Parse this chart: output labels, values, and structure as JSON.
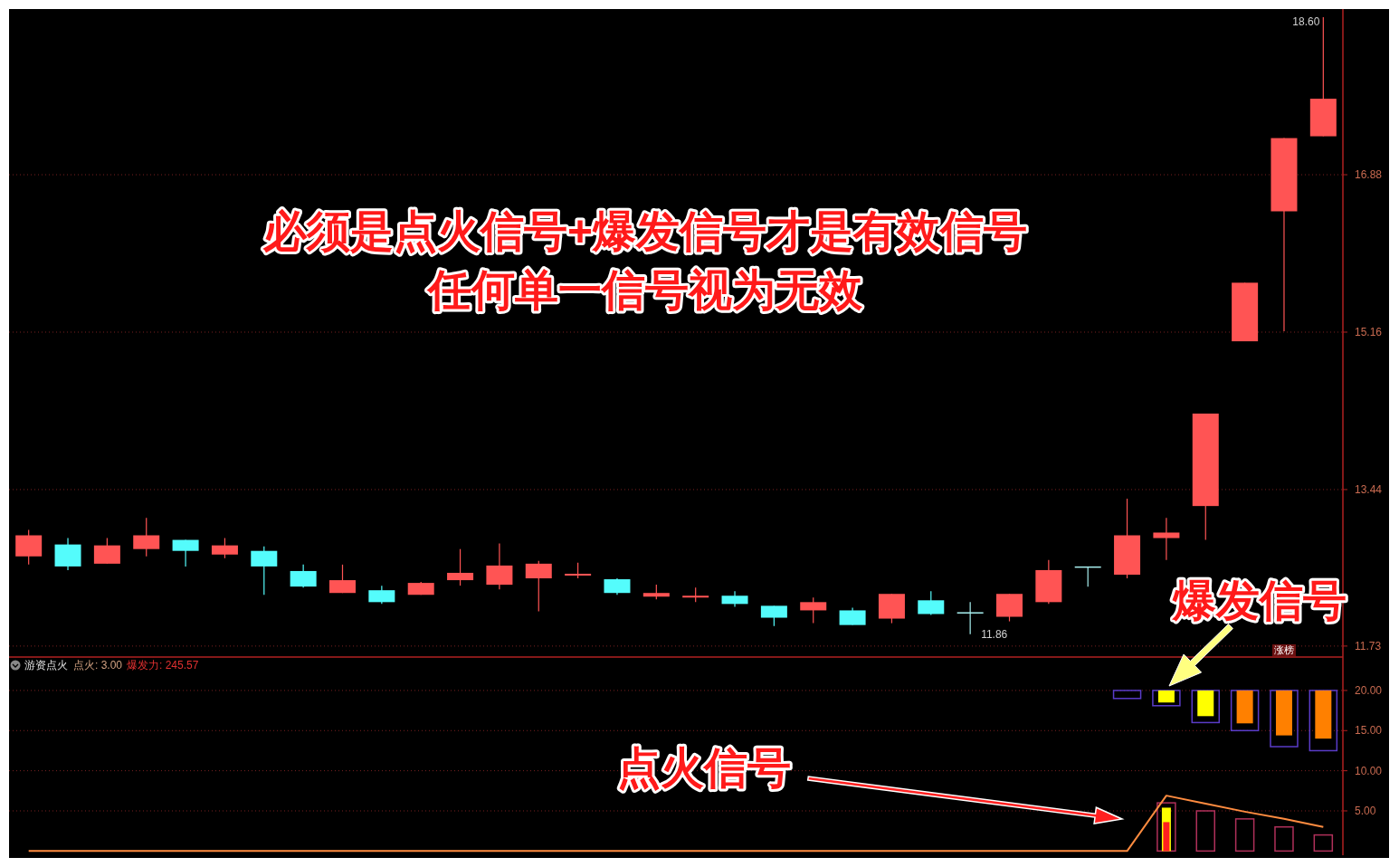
{
  "chart_data": [
    {
      "type": "candlestick",
      "categories": [
        null,
        null,
        null,
        null,
        null,
        null,
        null,
        null,
        null,
        null,
        null,
        null,
        null,
        null,
        null,
        null,
        null,
        null,
        null,
        null,
        null,
        null,
        null,
        null,
        null,
        null,
        null,
        null,
        null,
        null,
        null,
        null,
        null,
        null
      ],
      "ohlc": [
        [
          12.71,
          13.0,
          12.62,
          12.94
        ],
        [
          12.84,
          12.91,
          12.56,
          12.6
        ],
        [
          12.63,
          12.91,
          12.63,
          12.83
        ],
        [
          12.79,
          13.13,
          12.71,
          12.94
        ],
        [
          12.89,
          12.89,
          12.6,
          12.77
        ],
        [
          12.73,
          12.91,
          12.69,
          12.83
        ],
        [
          12.77,
          12.82,
          12.29,
          12.6
        ],
        [
          12.55,
          12.62,
          12.37,
          12.38
        ],
        [
          12.31,
          12.62,
          12.31,
          12.45
        ],
        [
          12.34,
          12.39,
          12.19,
          12.21
        ],
        [
          12.29,
          12.43,
          12.29,
          12.42
        ],
        [
          12.45,
          12.79,
          12.39,
          12.53
        ],
        [
          12.4,
          12.85,
          12.35,
          12.61
        ],
        [
          12.47,
          12.66,
          12.11,
          12.63
        ],
        [
          12.5,
          12.64,
          12.47,
          12.52
        ],
        [
          12.46,
          12.47,
          12.29,
          12.31
        ],
        [
          12.27,
          12.4,
          12.24,
          12.31
        ],
        [
          12.26,
          12.37,
          12.21,
          12.28
        ],
        [
          12.28,
          12.33,
          12.16,
          12.19
        ],
        [
          12.17,
          12.17,
          11.95,
          12.04
        ],
        [
          12.12,
          12.26,
          11.98,
          12.21
        ],
        [
          12.12,
          12.15,
          11.96,
          11.96
        ],
        [
          12.03,
          12.3,
          11.98,
          12.3
        ],
        [
          12.23,
          12.33,
          12.07,
          12.08
        ],
        [
          12.1,
          12.21,
          11.86,
          12.1
        ],
        [
          12.05,
          12.3,
          12.0,
          12.3
        ],
        [
          12.21,
          12.67,
          12.19,
          12.56
        ],
        [
          12.6,
          12.6,
          12.38,
          12.6
        ],
        [
          12.51,
          13.34,
          12.47,
          12.94
        ],
        [
          12.91,
          13.13,
          12.67,
          12.97
        ],
        [
          13.26,
          14.27,
          12.89,
          14.27
        ],
        [
          15.06,
          15.7,
          15.06,
          15.7
        ],
        [
          16.48,
          17.28,
          15.17,
          17.28
        ],
        [
          17.3,
          18.6,
          17.3,
          17.71
        ]
      ],
      "colors": [
        "#ff5454",
        "#54fcfc",
        "#ff5454",
        "#ff5454",
        "#54fcfc",
        "#ff5454",
        "#54fcfc",
        "#54fcfc",
        "#ff5454",
        "#54fcfc",
        "#ff5454",
        "#ff5454",
        "#ff5454",
        "#ff5454",
        "#ff5454",
        "#54fcfc",
        "#ff5454",
        "#ff5454",
        "#54fcfc",
        "#54fcfc",
        "#ff5454",
        "#54fcfc",
        "#ff5454",
        "#54fcfc",
        "#a8f0f0",
        "#ff5454",
        "#ff5454",
        "#a8f0f0",
        "#ff5454",
        "#ff5454",
        "#ff5454",
        "#ff5454",
        "#ff5454",
        "#ff5454"
      ],
      "ylim": [
        11.62,
        18.69
      ],
      "yticks": [
        11.73,
        13.44,
        15.16,
        16.88
      ],
      "grid": "y",
      "annotations": [
        "必须是点火信号+爆发信号才是有效信号",
        "任何单一信号视为无效",
        "爆发信号",
        "18.60",
        "11.86",
        "涨榜"
      ]
    },
    {
      "type": "bar",
      "title": "游资点火",
      "categories": [
        null,
        null,
        null,
        null,
        null,
        null,
        null,
        null,
        null,
        null,
        null,
        null,
        null,
        null,
        null,
        null,
        null,
        null,
        null,
        null,
        null,
        null,
        null,
        null,
        null,
        null,
        null,
        null,
        null,
        null,
        null,
        null,
        null,
        null
      ],
      "series": [
        {
          "type": "bar",
          "line_style": "solid",
          "color": "#5a3cc8",
          "base": [
            null,
            null,
            null,
            null,
            null,
            null,
            null,
            null,
            null,
            null,
            null,
            null,
            null,
            null,
            null,
            null,
            null,
            null,
            null,
            null,
            null,
            null,
            null,
            null,
            null,
            null,
            null,
            null,
            20,
            20,
            20,
            20,
            20,
            20
          ],
          "values": [
            null,
            null,
            null,
            null,
            null,
            null,
            null,
            null,
            null,
            null,
            null,
            null,
            null,
            null,
            null,
            null,
            null,
            null,
            null,
            null,
            null,
            null,
            null,
            null,
            null,
            null,
            null,
            null,
            -1.0,
            -1.9,
            -4.0,
            -5.0,
            -7.0,
            -7.5
          ]
        },
        {
          "type": "bar",
          "colors": [
            null,
            null,
            null,
            null,
            null,
            null,
            null,
            null,
            null,
            null,
            null,
            null,
            null,
            null,
            null,
            null,
            null,
            null,
            null,
            null,
            null,
            null,
            null,
            null,
            null,
            null,
            null,
            null,
            null,
            "#ffff00",
            "#ffff00",
            "#ff8000",
            "#ff8000",
            "#ff8000"
          ],
          "base": [
            null,
            null,
            null,
            null,
            null,
            null,
            null,
            null,
            null,
            null,
            null,
            null,
            null,
            null,
            null,
            null,
            null,
            null,
            null,
            null,
            null,
            null,
            null,
            null,
            null,
            null,
            null,
            null,
            null,
            20,
            20,
            20,
            20,
            20
          ],
          "values": [
            null,
            null,
            null,
            null,
            null,
            null,
            null,
            null,
            null,
            null,
            null,
            null,
            null,
            null,
            null,
            null,
            null,
            null,
            null,
            null,
            null,
            null,
            null,
            null,
            null,
            null,
            null,
            null,
            null,
            -1.5,
            -3.2,
            -4.1,
            -5.6,
            -6.0
          ]
        },
        {
          "type": "bar",
          "line_style": "solid",
          "color": "#b0305a",
          "values": [
            null,
            null,
            null,
            null,
            null,
            null,
            null,
            null,
            null,
            null,
            null,
            null,
            null,
            null,
            null,
            null,
            null,
            null,
            null,
            null,
            null,
            null,
            null,
            null,
            null,
            null,
            null,
            null,
            null,
            6,
            5,
            4,
            3,
            2
          ]
        },
        {
          "type": "bar",
          "color": "#ffff00",
          "values": [
            null,
            null,
            null,
            null,
            null,
            null,
            null,
            null,
            null,
            null,
            null,
            null,
            null,
            null,
            null,
            null,
            null,
            null,
            null,
            null,
            null,
            null,
            null,
            null,
            null,
            null,
            null,
            null,
            null,
            5.4,
            null,
            null,
            null,
            null
          ]
        },
        {
          "type": "bar",
          "color": "#ff2020",
          "values": [
            null,
            null,
            null,
            null,
            null,
            null,
            null,
            null,
            null,
            null,
            null,
            null,
            null,
            null,
            null,
            null,
            null,
            null,
            null,
            null,
            null,
            null,
            null,
            null,
            null,
            null,
            null,
            null,
            null,
            3.6,
            null,
            null,
            null,
            null
          ]
        },
        {
          "type": "line",
          "color": "#ff8c40",
          "values": [
            0,
            0,
            0,
            0,
            0,
            0,
            0,
            0,
            0,
            0,
            0,
            0,
            0,
            0,
            0,
            0,
            0,
            0,
            0,
            0,
            0,
            0,
            0,
            0,
            0,
            0,
            0,
            0,
            0,
            6.9,
            5.9,
            4.9,
            4.0,
            3.0
          ]
        }
      ],
      "ylim": [
        -0.3,
        24.05
      ],
      "yticks": [
        {
          "value": 5,
          "label": "5.00"
        },
        {
          "value": 10,
          "label": "10.00"
        },
        {
          "value": 15,
          "label": "15.00"
        },
        {
          "value": 20,
          "label": "20.00"
        }
      ],
      "grid": "y",
      "annotations": [
        "点火: 3.00",
        "爆发力: 245.57",
        "点火信号"
      ]
    }
  ]
}
